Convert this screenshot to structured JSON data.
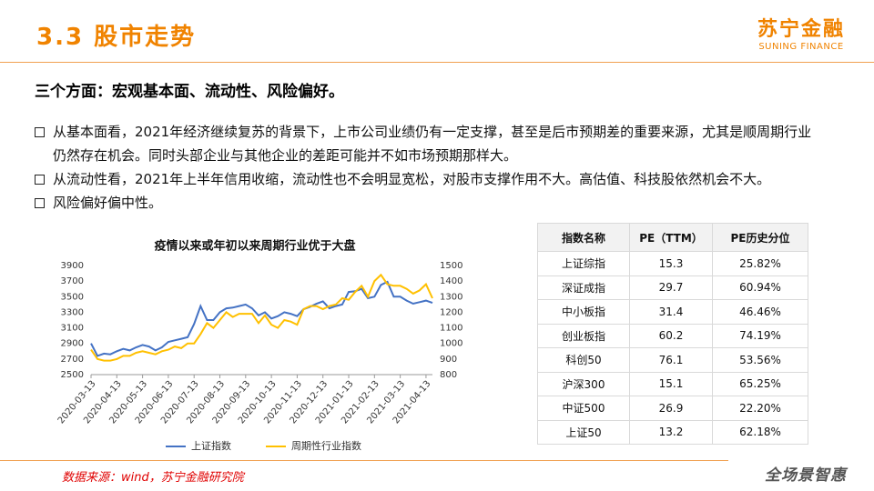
{
  "header": {
    "title": "3.3 股市走势",
    "logo": "苏宁金融",
    "logo_en": "SUNING FINANCE"
  },
  "subtitle": "三个方面：宏观基本面、流动性、风险偏好。",
  "bullets": [
    "从基本面看，2021年经济继续复苏的背景下，上市公司业绩仍有一定支撑，甚至是后市预期差的重要来源，尤其是顺周期行业仍然存在机会。同时头部企业与其他企业的差距可能并不如市场预期那样大。",
    "从流动性看，2021年上半年信用收缩，流动性也不会明显宽松，对股市支撑作用不大。高估值、科技股依然机会不大。",
    "风险偏好偏中性。"
  ],
  "chart_data": {
    "type": "line",
    "title": "疫情以来或年初以来周期行业优于大盘",
    "categories": [
      "2020-03-13",
      null,
      null,
      null,
      "2020-04-13",
      null,
      null,
      null,
      "2020-05-13",
      null,
      null,
      null,
      "2020-06-13",
      null,
      null,
      null,
      "2020-07-13",
      null,
      null,
      null,
      "2020-08-13",
      null,
      null,
      null,
      "2020-09-13",
      null,
      null,
      null,
      "2020-10-13",
      null,
      null,
      null,
      "2020-11-13",
      null,
      null,
      null,
      "2020-12-13",
      null,
      null,
      null,
      "2021-01-13",
      null,
      null,
      null,
      "2021-02-13",
      null,
      null,
      null,
      "2021-03-13",
      null,
      null,
      null,
      "2021-04-13",
      null
    ],
    "series": [
      {
        "name": "上证指数",
        "color": "#4472c4",
        "values": [
          2900,
          2740,
          2770,
          2760,
          2800,
          2830,
          2810,
          2850,
          2880,
          2860,
          2810,
          2850,
          2920,
          2940,
          2960,
          2980,
          3150,
          3380,
          3200,
          3200,
          3300,
          3350,
          3360,
          3380,
          3400,
          3350,
          3260,
          3300,
          3220,
          3250,
          3300,
          3280,
          3250,
          3340,
          3370,
          3410,
          3440,
          3350,
          3380,
          3400,
          3560,
          3570,
          3600,
          3480,
          3500,
          3650,
          3690,
          3500,
          3500,
          3450,
          3410,
          3430,
          3450,
          3420
        ]
      },
      {
        "name": "周期性行业指数",
        "color": "#ffc000",
        "axis": "y2",
        "values": [
          960,
          900,
          890,
          890,
          900,
          920,
          920,
          940,
          950,
          940,
          930,
          950,
          960,
          980,
          970,
          1000,
          1000,
          1060,
          1130,
          1100,
          1150,
          1200,
          1170,
          1190,
          1190,
          1190,
          1130,
          1180,
          1120,
          1100,
          1150,
          1140,
          1120,
          1220,
          1240,
          1240,
          1220,
          1240,
          1250,
          1290,
          1280,
          1330,
          1370,
          1300,
          1400,
          1440,
          1380,
          1370,
          1370,
          1350,
          1320,
          1340,
          1380,
          1290
        ]
      }
    ],
    "ylim": [
      2500,
      3900
    ],
    "yticks": [
      2500,
      2700,
      2900,
      3100,
      3300,
      3500,
      3700,
      3900
    ],
    "y2lim": [
      800,
      1500
    ],
    "y2ticks": [
      800,
      900,
      1000,
      1100,
      1200,
      1300,
      1400,
      1500
    ],
    "grid": false,
    "legend": "bottom"
  },
  "table": {
    "header": [
      "指数名称",
      "PE（TTM）",
      "PE历史分位"
    ],
    "rows": [
      [
        "上证综指",
        "15.3",
        "25.82%"
      ],
      [
        "深证成指",
        "29.7",
        "60.94%"
      ],
      [
        "中小板指",
        "31.4",
        "46.46%"
      ],
      [
        "创业板指",
        "60.2",
        "74.19%"
      ],
      [
        "科创50",
        "76.1",
        "53.56%"
      ],
      [
        "沪深300",
        "15.1",
        "65.25%"
      ],
      [
        "中证500",
        "26.9",
        "22.20%"
      ],
      [
        "上证50",
        "13.2",
        "62.18%"
      ]
    ]
  },
  "footer": {
    "source": "数据来源：wind，苏宁金融研究院",
    "slogan": "全场景智惠"
  }
}
